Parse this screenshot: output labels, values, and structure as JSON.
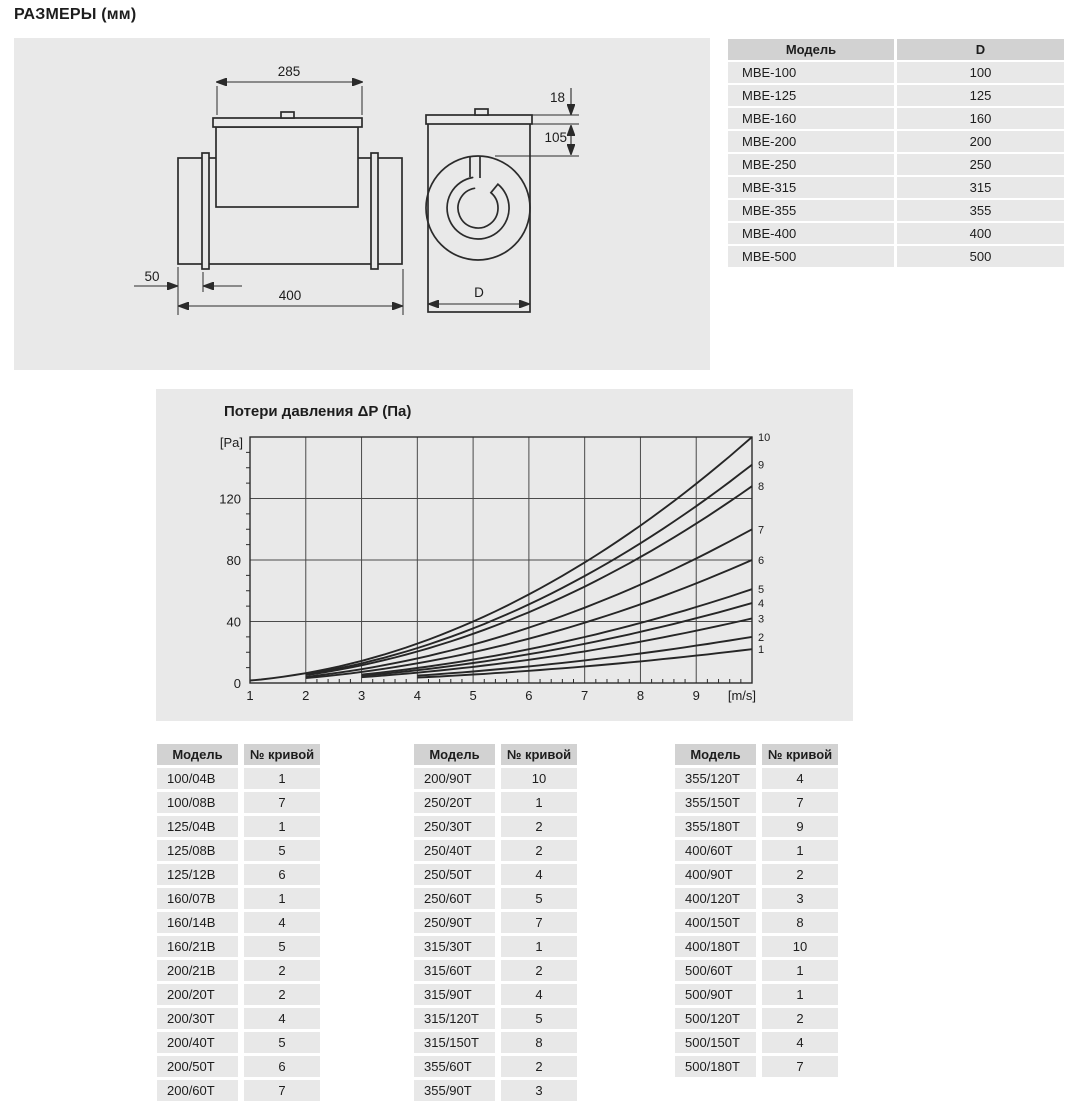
{
  "page": {
    "title": "РАЗМЕРЫ (мм)"
  },
  "drawing": {
    "dims": {
      "top_width": "285",
      "lid_height": "18",
      "casing_height": "105",
      "flange_offset": "50",
      "duct_length": "400",
      "diameter": "D"
    }
  },
  "mbe_table": {
    "headers": [
      "Модель",
      "D"
    ],
    "rows": [
      [
        "MBE-100",
        "100"
      ],
      [
        "MBE-125",
        "125"
      ],
      [
        "MBE-160",
        "160"
      ],
      [
        "MBE-200",
        "200"
      ],
      [
        "MBE-250",
        "250"
      ],
      [
        "MBE-315",
        "315"
      ],
      [
        "MBE-355",
        "355"
      ],
      [
        "MBE-400",
        "400"
      ],
      [
        "MBE-500",
        "500"
      ]
    ]
  },
  "chart_data": {
    "type": "line",
    "title": "Потери давления ΔP (Па)",
    "y_unit": "[Pa]",
    "x_unit": "[m/s]",
    "x_ticks": [
      1,
      2,
      3,
      4,
      5,
      6,
      7,
      8,
      9
    ],
    "y_ticks": [
      0,
      40,
      80,
      120
    ],
    "xlim": [
      1,
      10
    ],
    "ylim": [
      0,
      160
    ],
    "grid": true,
    "model": "dP(v) = (end_value/100) * v^2, drawn from start_v to v=10 m/s",
    "series": [
      {
        "curve": "1",
        "start_v": 4,
        "end_value": 22
      },
      {
        "curve": "2",
        "start_v": 4,
        "end_value": 30
      },
      {
        "curve": "3",
        "start_v": 3,
        "end_value": 42
      },
      {
        "curve": "4",
        "start_v": 3,
        "end_value": 52
      },
      {
        "curve": "5",
        "start_v": 3,
        "end_value": 61
      },
      {
        "curve": "6",
        "start_v": 2,
        "end_value": 80
      },
      {
        "curve": "7",
        "start_v": 2,
        "end_value": 100
      },
      {
        "curve": "8",
        "start_v": 2,
        "end_value": 128
      },
      {
        "curve": "9",
        "start_v": 2,
        "end_value": 142
      },
      {
        "curve": "10",
        "start_v": 1,
        "end_value": 160
      }
    ]
  },
  "curve_tables": [
    {
      "headers": [
        "Модель",
        "№ кривой"
      ],
      "rows": [
        [
          "100/04B",
          "1"
        ],
        [
          "100/08B",
          "7"
        ],
        [
          "125/04B",
          "1"
        ],
        [
          "125/08B",
          "5"
        ],
        [
          "125/12B",
          "6"
        ],
        [
          "160/07B",
          "1"
        ],
        [
          "160/14B",
          "4"
        ],
        [
          "160/21B",
          "5"
        ],
        [
          "200/21B",
          "2"
        ],
        [
          "200/20T",
          "2"
        ],
        [
          "200/30T",
          "4"
        ],
        [
          "200/40T",
          "5"
        ],
        [
          "200/50T",
          "6"
        ],
        [
          "200/60T",
          "7"
        ]
      ]
    },
    {
      "headers": [
        "Модель",
        "№ кривой"
      ],
      "rows": [
        [
          "200/90T",
          "10"
        ],
        [
          "250/20T",
          "1"
        ],
        [
          "250/30T",
          "2"
        ],
        [
          "250/40T",
          "2"
        ],
        [
          "250/50T",
          "4"
        ],
        [
          "250/60T",
          "5"
        ],
        [
          "250/90T",
          "7"
        ],
        [
          "315/30T",
          "1"
        ],
        [
          "315/60T",
          "2"
        ],
        [
          "315/90T",
          "4"
        ],
        [
          "315/120T",
          "5"
        ],
        [
          "315/150T",
          "8"
        ],
        [
          "355/60T",
          "2"
        ],
        [
          "355/90T",
          "3"
        ]
      ]
    },
    {
      "headers": [
        "Модель",
        "№ кривой"
      ],
      "rows": [
        [
          "355/120T",
          "4"
        ],
        [
          "355/150T",
          "7"
        ],
        [
          "355/180T",
          "9"
        ],
        [
          "400/60T",
          "1"
        ],
        [
          "400/90T",
          "2"
        ],
        [
          "400/120T",
          "3"
        ],
        [
          "400/150T",
          "8"
        ],
        [
          "400/180T",
          "10"
        ],
        [
          "500/60T",
          "1"
        ],
        [
          "500/90T",
          "1"
        ],
        [
          "500/120T",
          "2"
        ],
        [
          "500/150T",
          "4"
        ],
        [
          "500/180T",
          "7"
        ]
      ]
    }
  ],
  "colors": {
    "panel": "#e9e9e9",
    "table_header": "#d2d2d2",
    "table_cell": "#e8e8e8",
    "ink": "#1d1d1d"
  }
}
